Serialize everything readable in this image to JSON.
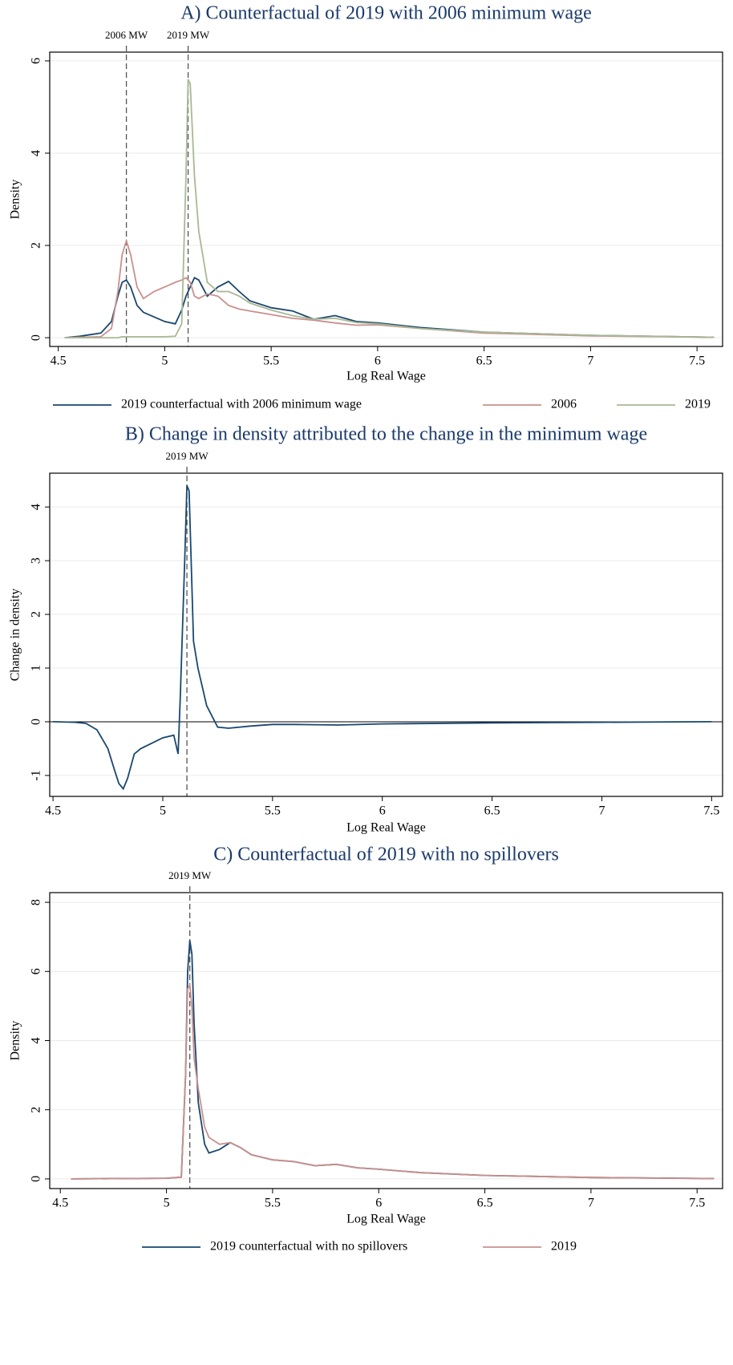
{
  "chart_data": [
    {
      "type": "line",
      "title": "A) Counterfactual of 2019 with 2006 minimum wage",
      "x_label": "Log Real Wage",
      "y_label": "Density",
      "x": [
        4.53,
        4.6,
        4.7,
        4.75,
        4.78,
        4.8,
        4.82,
        4.84,
        4.87,
        4.9,
        4.95,
        5.0,
        5.05,
        5.08,
        5.1,
        5.11,
        5.12,
        5.14,
        5.16,
        5.2,
        5.25,
        5.3,
        5.35,
        5.4,
        5.5,
        5.6,
        5.7,
        5.8,
        5.9,
        6.0,
        6.2,
        6.5,
        7.0,
        7.58
      ],
      "series": [
        {
          "name": "2019 counterfactual with 2006 minimum wage",
          "color": "#1a476f",
          "values": [
            0,
            0.03,
            0.1,
            0.35,
            0.9,
            1.2,
            1.25,
            1.1,
            0.7,
            0.55,
            0.45,
            0.35,
            0.3,
            0.6,
            0.9,
            1.0,
            1.1,
            1.3,
            1.25,
            0.9,
            1.1,
            1.22,
            1.0,
            0.8,
            0.65,
            0.58,
            0.4,
            0.48,
            0.35,
            0.32,
            0.22,
            0.12,
            0.05,
            0.01
          ]
        },
        {
          "name": "2006",
          "color": "#c9908e",
          "values": [
            0,
            0.01,
            0.02,
            0.2,
            1.0,
            1.8,
            2.1,
            1.8,
            1.1,
            0.85,
            1.0,
            1.1,
            1.2,
            1.25,
            1.3,
            1.25,
            1.2,
            0.9,
            0.85,
            0.95,
            0.9,
            0.7,
            0.62,
            0.58,
            0.5,
            0.42,
            0.38,
            0.32,
            0.27,
            0.28,
            0.2,
            0.1,
            0.04,
            0.01
          ]
        },
        {
          "name": "2019",
          "color": "#a8b894",
          "values": [
            0,
            0,
            0,
            0,
            0,
            0.02,
            0.02,
            0.02,
            0.02,
            0.02,
            0.02,
            0.02,
            0.03,
            0.3,
            3.5,
            5.6,
            5.5,
            3.5,
            2.3,
            1.2,
            1.0,
            1.0,
            0.9,
            0.75,
            0.6,
            0.48,
            0.4,
            0.42,
            0.33,
            0.3,
            0.2,
            0.12,
            0.05,
            0.01
          ]
        }
      ],
      "xlim": [
        4.46,
        7.62
      ],
      "xticks": [
        4.5,
        5,
        5.5,
        6,
        6.5,
        7,
        7.5
      ],
      "ylim": [
        -0.19,
        6.19
      ],
      "yticks": [
        0,
        2,
        4,
        6
      ],
      "grid": true,
      "annotations": [
        {
          "text": "2006 MW",
          "x": 4.82
        },
        {
          "text": "2019 MW",
          "x": 5.11
        }
      ]
    },
    {
      "type": "line",
      "title": "B) Change in density attributed to the change in the minimum wage",
      "x_label": "Log Real Wage",
      "y_label": "Change in density",
      "x": [
        4.5,
        4.6,
        4.65,
        4.7,
        4.75,
        4.78,
        4.8,
        4.82,
        4.84,
        4.87,
        4.9,
        4.95,
        5.0,
        5.05,
        5.07,
        5.08,
        5.1,
        5.11,
        5.12,
        5.14,
        5.16,
        5.2,
        5.25,
        5.3,
        5.4,
        5.5,
        5.6,
        5.8,
        6.0,
        6.5,
        7.0,
        7.5
      ],
      "series": [
        {
          "name": null,
          "color": "#1a476f",
          "values": [
            0,
            -0.01,
            -0.03,
            -0.15,
            -0.5,
            -0.9,
            -1.15,
            -1.25,
            -1.05,
            -0.6,
            -0.5,
            -0.4,
            -0.3,
            -0.25,
            -0.6,
            0.5,
            3.0,
            4.4,
            4.3,
            1.5,
            1.0,
            0.3,
            -0.1,
            -0.12,
            -0.08,
            -0.05,
            -0.05,
            -0.06,
            -0.04,
            -0.02,
            -0.01,
            0
          ]
        }
      ],
      "xlim": [
        4.485,
        7.55
      ],
      "xticks": [
        4.5,
        5,
        5.5,
        6,
        6.5,
        7,
        7.5
      ],
      "ylim": [
        -1.39,
        4.63
      ],
      "yticks": [
        -1,
        0,
        1,
        2,
        3,
        4
      ],
      "grid": true,
      "reference_y": 0,
      "annotations": [
        {
          "text": "2019 MW",
          "x": 5.11
        }
      ]
    },
    {
      "type": "line",
      "title": "C) Counterfactual of 2019 with no spillovers",
      "x_label": "Log Real Wage",
      "y_label": "Density",
      "x": [
        4.55,
        4.8,
        5.0,
        5.07,
        5.09,
        5.1,
        5.11,
        5.12,
        5.13,
        5.15,
        5.18,
        5.2,
        5.25,
        5.3,
        5.35,
        5.4,
        5.5,
        5.6,
        5.7,
        5.8,
        5.9,
        6.0,
        6.2,
        6.5,
        7.0,
        7.58
      ],
      "series": [
        {
          "name": "2019 counterfactual with no spillovers",
          "color": "#1a476f",
          "values": [
            0,
            0.01,
            0.02,
            0.05,
            3.0,
            6.0,
            6.9,
            6.5,
            4.5,
            2.2,
            1.0,
            0.75,
            0.85,
            1.05,
            0.9,
            0.7,
            0.55,
            0.5,
            0.38,
            0.42,
            0.32,
            0.28,
            0.18,
            0.1,
            0.04,
            0.01
          ]
        },
        {
          "name": "2019",
          "color": "#c9908e",
          "values": [
            0,
            0.01,
            0.02,
            0.05,
            3.0,
            5.5,
            5.6,
            5.0,
            3.5,
            2.6,
            1.5,
            1.2,
            1.0,
            1.05,
            0.9,
            0.7,
            0.55,
            0.5,
            0.38,
            0.42,
            0.32,
            0.28,
            0.18,
            0.1,
            0.04,
            0.01
          ]
        }
      ],
      "xlim": [
        4.45,
        7.62
      ],
      "xticks": [
        4.5,
        5,
        5.5,
        6,
        6.5,
        7,
        7.5
      ],
      "ylim": [
        -0.28,
        8.28
      ],
      "yticks": [
        0,
        2,
        4,
        6,
        8
      ],
      "grid": true,
      "annotations": [
        {
          "text": "2019 MW",
          "x": 5.11
        }
      ]
    }
  ]
}
